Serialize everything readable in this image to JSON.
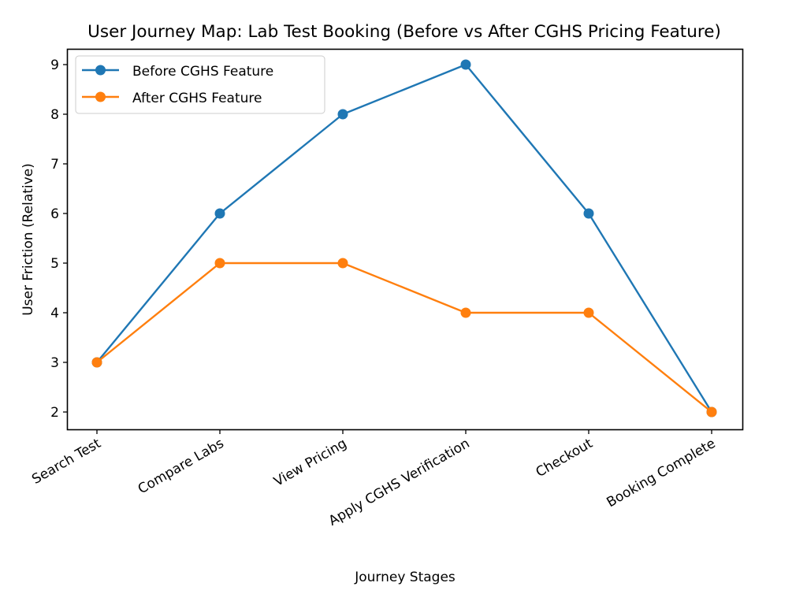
{
  "chart_data": {
    "type": "line",
    "title": "User Journey Map: Lab Test Booking (Before vs After CGHS Pricing Feature)",
    "xlabel": "Journey Stages",
    "ylabel": "User Friction (Relative)",
    "categories": [
      "Search Test",
      "Compare Labs",
      "View Pricing",
      "Apply CGHS Verification",
      "Checkout",
      "Booking Complete"
    ],
    "yticks": [
      2,
      3,
      4,
      5,
      6,
      7,
      8,
      9
    ],
    "ylim": [
      1.65,
      9.35
    ],
    "grid": false,
    "legend_position": "upper-left",
    "series": [
      {
        "name": "Before CGHS Feature",
        "color": "#1f77b4",
        "values": [
          3,
          6,
          8,
          9,
          6,
          2
        ]
      },
      {
        "name": "After CGHS Feature",
        "color": "#ff7f0e",
        "values": [
          3,
          5,
          5,
          4,
          4,
          2
        ]
      }
    ]
  }
}
